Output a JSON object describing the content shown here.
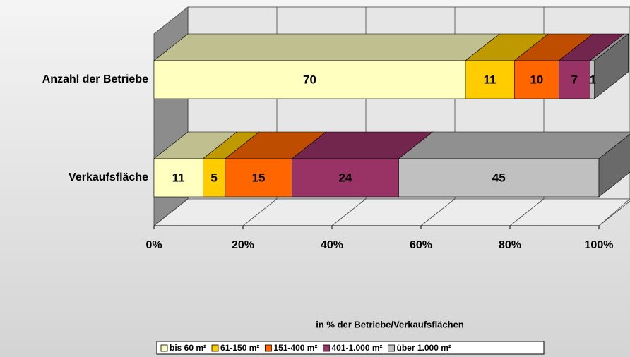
{
  "chart_data": {
    "type": "bar3d_stacked_horizontal",
    "x_label": "in % der Betriebe/Verkaufsflächen",
    "categories": [
      "Anzahl der Betriebe",
      "Verkaufsfläche"
    ],
    "series": [
      {
        "name": "bis 60 m²",
        "color": "#ffffc0",
        "values": [
          70,
          11
        ]
      },
      {
        "name": "61-150 m²",
        "color": "#ffcc00",
        "values": [
          11,
          5
        ]
      },
      {
        "name": "151-400 m²",
        "color": "#ff6600",
        "values": [
          10,
          15
        ]
      },
      {
        "name": "401-1.000 m²",
        "color": "#993366",
        "values": [
          7,
          24
        ]
      },
      {
        "name": "über 1.000 m²",
        "color": "#c0c0c0",
        "values": [
          1,
          45
        ]
      }
    ],
    "xlim": [
      0,
      100
    ],
    "xticks": [
      {
        "value": 0,
        "label": "0%"
      },
      {
        "value": 20,
        "label": "20%"
      },
      {
        "value": 40,
        "label": "40%"
      },
      {
        "value": 60,
        "label": "60%"
      },
      {
        "value": 80,
        "label": "80%"
      },
      {
        "value": 100,
        "label": "100%"
      }
    ],
    "grid": true,
    "legend": "bottom"
  }
}
